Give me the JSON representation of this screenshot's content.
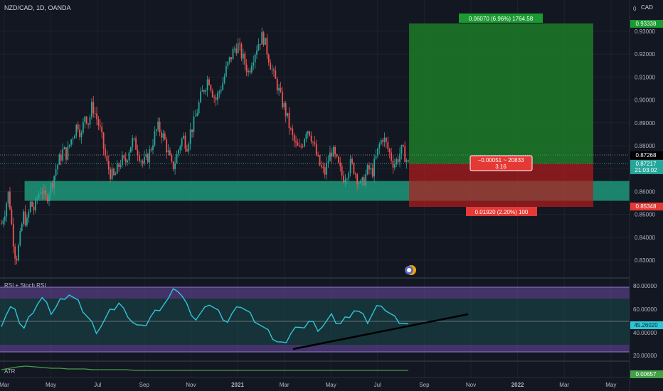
{
  "header": {
    "symbol_title": "NZD/CAD, 1D, OANDA",
    "currency": "CAD"
  },
  "colors": {
    "background": "#131722",
    "candle_up": "#26a69a",
    "candle_down": "#ef5350",
    "rsi_line": "#2fc6d6",
    "atr_line": "#43a047",
    "zone_green": "#1fa381",
    "target_green": "#1b7a27",
    "stop_red": "#b71c1c"
  },
  "price_axis": {
    "ticks": [
      "0.93000",
      "0.92000",
      "0.91000",
      "0.90000",
      "0.89000",
      "0.88000",
      "0.87000",
      "0.86000",
      "0.85000",
      "0.84000",
      "0.83000"
    ],
    "target_price": "0.93338",
    "last_price": "0.87268",
    "current_price": "0.87217",
    "countdown": "21:03:02",
    "stop_price": "0.85348"
  },
  "position": {
    "target_label": "0.06070 (6.96%) 1764.58",
    "center_label_line1": "−0.00051 ~ 20833",
    "center_label_line2": "3.16",
    "stop_label": "0.01920 (2.20%) 100"
  },
  "rsi": {
    "label": "RSI + Stoch RSI",
    "ticks": [
      "80.00000",
      "60.00000",
      "40.00000",
      "20.00000"
    ],
    "value": "45.26020"
  },
  "atr": {
    "label": "ATR",
    "value": "0.00657"
  },
  "time_axis": {
    "labels": [
      "Mar",
      "May",
      "Jul",
      "Sep",
      "Nov",
      "2021",
      "Mar",
      "May",
      "Jul",
      "Sep",
      "Nov",
      "2022",
      "Mar",
      "May"
    ]
  },
  "price_series": {
    "points": [
      0.846,
      0.852,
      0.86,
      0.842,
      0.83,
      0.838,
      0.85,
      0.846,
      0.855,
      0.852,
      0.858,
      0.862,
      0.856,
      0.86,
      0.864,
      0.87,
      0.874,
      0.878,
      0.876,
      0.882,
      0.886,
      0.89,
      0.884,
      0.894,
      0.89,
      0.898,
      0.893,
      0.888,
      0.88,
      0.872,
      0.868,
      0.866,
      0.87,
      0.874,
      0.872,
      0.878,
      0.882,
      0.88,
      0.876,
      0.872,
      0.874,
      0.878,
      0.884,
      0.888,
      0.886,
      0.882,
      0.876,
      0.87,
      0.874,
      0.88,
      0.884,
      0.88,
      0.886,
      0.89,
      0.896,
      0.902,
      0.906,
      0.91,
      0.904,
      0.9,
      0.904,
      0.908,
      0.914,
      0.918,
      0.922,
      0.924,
      0.92,
      0.916,
      0.912,
      0.918,
      0.922,
      0.926,
      0.928,
      0.922,
      0.916,
      0.91,
      0.906,
      0.9,
      0.896,
      0.89,
      0.884,
      0.88,
      0.878,
      0.882,
      0.888,
      0.886,
      0.88,
      0.874,
      0.87,
      0.868,
      0.874,
      0.878,
      0.874,
      0.87,
      0.866,
      0.868,
      0.872,
      0.87,
      0.866,
      0.862,
      0.866,
      0.87,
      0.868,
      0.874,
      0.88,
      0.884,
      0.88,
      0.876,
      0.872,
      0.874,
      0.878,
      0.876,
      0.872
    ]
  },
  "rsi_series": {
    "points": [
      48,
      56,
      62,
      58,
      50,
      44,
      52,
      60,
      66,
      70,
      64,
      58,
      62,
      68,
      72,
      74,
      70,
      66,
      60,
      54,
      48,
      42,
      46,
      52,
      58,
      62,
      66,
      60,
      56,
      50,
      46,
      44,
      48,
      54,
      58,
      62,
      66,
      70,
      76,
      78,
      72,
      64,
      58,
      52,
      56,
      60,
      66,
      62,
      58,
      54,
      50,
      56,
      60,
      64,
      60,
      56,
      52,
      48,
      44,
      40,
      36,
      32,
      30,
      34,
      40,
      44,
      42,
      46,
      50,
      48,
      44,
      46,
      50,
      54,
      50,
      48,
      52,
      56,
      60,
      58,
      54,
      50,
      56,
      62,
      66,
      60,
      56,
      52,
      50,
      48,
      46
    ]
  },
  "atr_series": {
    "points": [
      10,
      12,
      14,
      15,
      14,
      13,
      12,
      12,
      11,
      11,
      11,
      10,
      10,
      10,
      10,
      10,
      9,
      9,
      9,
      9,
      9,
      9,
      9,
      9,
      9,
      9,
      9,
      9,
      9,
      9,
      9,
      9,
      9,
      9,
      9,
      9,
      9,
      9,
      9,
      9,
      9,
      9,
      9,
      9,
      9,
      9,
      9,
      9,
      9,
      9
    ]
  }
}
